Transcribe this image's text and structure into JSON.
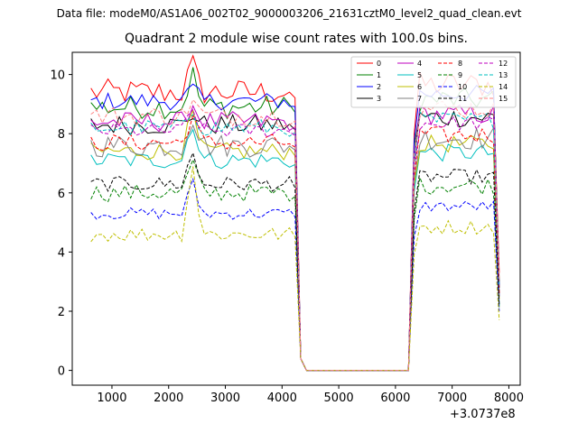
{
  "chart_data": {
    "type": "line",
    "suptitle": "Data file: modeM0/AS1A06_002T02_9000003206_21631cztM0_level2_quad_clean.evt",
    "title": "Quadrant 2 module wise count rates with 100.0s bins.",
    "xlabel": "",
    "ylabel": "",
    "x_offset_label": "+3.0737e8",
    "xlim": [
      300,
      8200
    ],
    "ylim": [
      -0.5,
      10.75
    ],
    "xticks": [
      1000,
      2000,
      3000,
      4000,
      5000,
      6000,
      7000,
      8000
    ],
    "yticks": [
      0,
      2,
      4,
      6,
      8,
      10
    ],
    "x": [
      630,
      730,
      830,
      930,
      1030,
      1130,
      1230,
      1330,
      1430,
      1530,
      1630,
      1730,
      1830,
      1930,
      2030,
      2130,
      2230,
      2330,
      2430,
      2530,
      2630,
      2730,
      2830,
      2930,
      3030,
      3130,
      3230,
      3330,
      3430,
      3530,
      3630,
      3730,
      3830,
      3930,
      4030,
      4130,
      4230,
      4330,
      4430,
      4530,
      4630,
      4730,
      4830,
      4930,
      5030,
      5130,
      5230,
      5330,
      5430,
      5530,
      5630,
      5730,
      5830,
      5930,
      6030,
      6130,
      6230,
      6330,
      6430,
      6530,
      6630,
      6730,
      6830,
      6930,
      7030,
      7130,
      7230,
      7330,
      7430,
      7530,
      7630,
      7730,
      7830
    ],
    "gap_x_range": [
      4430,
      6230
    ],
    "legend": "upper right, 4 columns",
    "series": [
      {
        "name": "0",
        "color": "#ff0000",
        "dash": false,
        "level": 9.4,
        "burst": 0.9,
        "amp": 0.45,
        "end": 3.3
      },
      {
        "name": "1",
        "color": "#008000",
        "dash": false,
        "level": 8.9,
        "burst": 1.1,
        "amp": 0.4,
        "end": 3.0
      },
      {
        "name": "2",
        "color": "#0000ff",
        "dash": false,
        "level": 9.1,
        "burst": 0.4,
        "amp": 0.3,
        "end": 2.5
      },
      {
        "name": "3",
        "color": "#000000",
        "dash": false,
        "level": 8.3,
        "burst": 0.4,
        "amp": 0.35,
        "end": 2.8
      },
      {
        "name": "4",
        "color": "#bf00bf",
        "dash": false,
        "level": 8.4,
        "burst": 0.6,
        "amp": 0.35,
        "end": 2.9
      },
      {
        "name": "5",
        "color": "#00bfbf",
        "dash": false,
        "level": 7.1,
        "burst": 1.3,
        "amp": 0.3,
        "end": 2.2
      },
      {
        "name": "6",
        "color": "#bfbf00",
        "dash": false,
        "level": 7.4,
        "burst": 1.2,
        "amp": 0.3,
        "end": 2.4
      },
      {
        "name": "7",
        "color": "#808080",
        "dash": false,
        "level": 7.6,
        "burst": 1.0,
        "amp": 0.4,
        "end": 2.6
      },
      {
        "name": "8",
        "color": "#ff0000",
        "dash": true,
        "level": 7.7,
        "burst": 0.9,
        "amp": 0.3,
        "end": 2.6
      },
      {
        "name": "9",
        "color": "#008000",
        "dash": true,
        "level": 6.0,
        "burst": 1.0,
        "amp": 0.3,
        "end": 2.1
      },
      {
        "name": "10",
        "color": "#0000ff",
        "dash": true,
        "level": 5.3,
        "burst": 1.0,
        "amp": 0.2,
        "end": 2.0
      },
      {
        "name": "11",
        "color": "#000000",
        "dash": true,
        "level": 6.3,
        "burst": 1.0,
        "amp": 0.25,
        "end": 2.2
      },
      {
        "name": "12",
        "color": "#bf00bf",
        "dash": true,
        "level": 8.1,
        "burst": 0.7,
        "amp": 0.25,
        "end": 2.8
      },
      {
        "name": "13",
        "color": "#00bfbf",
        "dash": true,
        "level": 8.2,
        "burst": 0.6,
        "amp": 0.3,
        "end": 2.9
      },
      {
        "name": "14",
        "color": "#bfbf00",
        "dash": true,
        "level": 4.6,
        "burst": 2.3,
        "amp": 0.25,
        "end": 1.7
      },
      {
        "name": "15",
        "color": "#ff8080",
        "dash": true,
        "level": 8.6,
        "burst": 0.5,
        "amp": 0.35,
        "end": 3.1
      }
    ]
  }
}
